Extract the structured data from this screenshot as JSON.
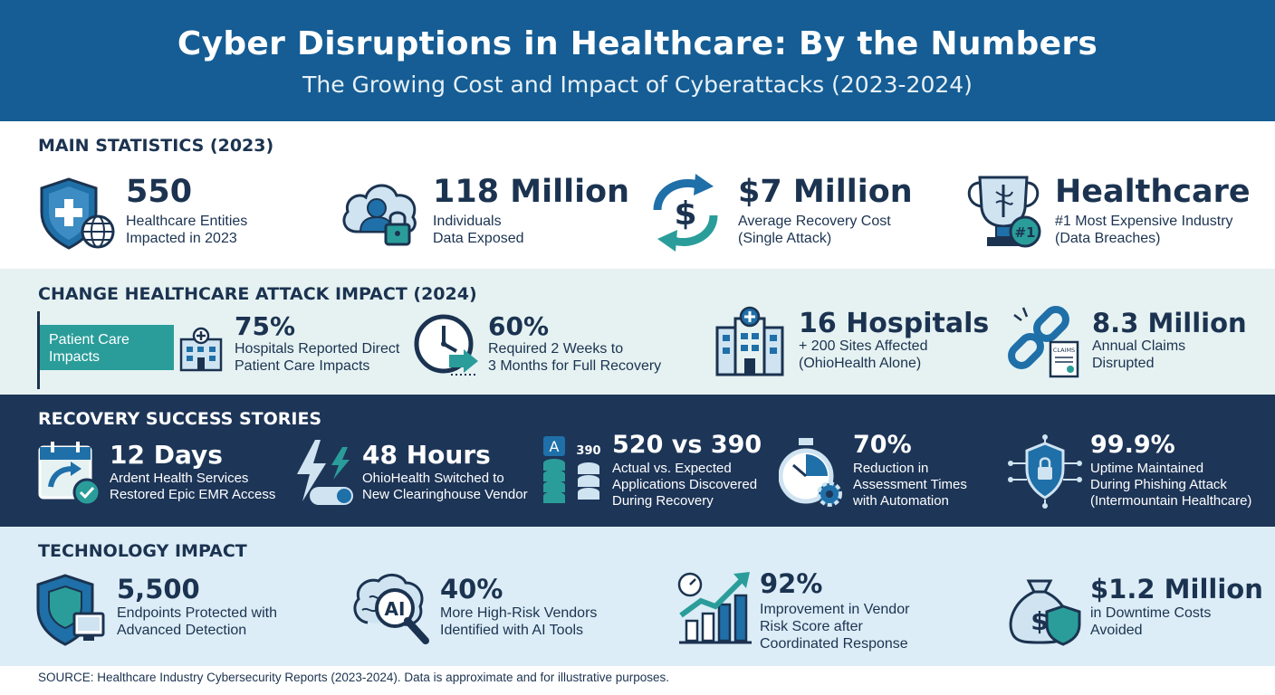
{
  "header": {
    "title": "Cyber Disruptions in Healthcare: By the Numbers",
    "subtitle": "The Growing Cost and Impact of Cyberattacks (2023-2024)"
  },
  "main_stats": {
    "title": "MAIN STATISTICS (2023)",
    "items": [
      {
        "value": "550",
        "line1": "Healthcare Entities",
        "line2": "Impacted in 2023",
        "icon": "shield-globe-icon"
      },
      {
        "value": "118 Million",
        "line1": "Individuals",
        "line2": "Data Exposed",
        "icon": "cloud-user-lock-icon"
      },
      {
        "value": "$7 Million",
        "line1": "Average Recovery Cost",
        "line2": "(Single Attack)",
        "icon": "dollar-cycle-icon"
      },
      {
        "value": "Healthcare",
        "line1": "#1 Most Expensive Industry",
        "line2": "(Data Breaches)",
        "icon": "trophy-icon",
        "badge": "#1"
      }
    ]
  },
  "change_attack": {
    "title": "CHANGE HEALTHCARE ATTACK IMPACT (2024)",
    "tag": "Patient Care Impacts",
    "items": [
      {
        "value": "75%",
        "line1": "Hospitals Reported Direct",
        "line2": "Patient Care Impacts",
        "icon": "hospital-icon"
      },
      {
        "value": "60%",
        "line1": "Required 2 Weeks to",
        "line2": "3 Months for Full Recovery",
        "icon": "clock-arrow-icon"
      },
      {
        "value": "16 Hospitals",
        "line1": "+ 200 Sites Affected",
        "line2": "(OhioHealth Alone)",
        "icon": "hospital-building-icon"
      },
      {
        "value": "8.3 Million",
        "line1": "Annual Claims",
        "line2": "Disrupted",
        "icon": "broken-chain-icon",
        "doc_label": "CLAIMS"
      }
    ]
  },
  "recovery": {
    "title": "RECOVERY SUCCESS STORIES",
    "items": [
      {
        "value": "12 Days",
        "line1": "Ardent Health Services",
        "line2": "Restored Epic EMR Access",
        "line3": "",
        "icon": "calendar-check-icon"
      },
      {
        "value": "48 Hours",
        "line1": "OhioHealth Switched to",
        "line2": "New Clearinghouse Vendor",
        "line3": "",
        "icon": "lightning-toggle-icon"
      },
      {
        "value": "520 vs 390",
        "line1": "Actual vs. Expected",
        "line2": "Applications Discovered",
        "line3": "During Recovery",
        "icon": "app-stacks-icon",
        "stack_label": "390"
      },
      {
        "value": "70%",
        "line1": "Reduction in",
        "line2": "Assessment Times",
        "line3": "with Automation",
        "icon": "stopwatch-gear-icon"
      },
      {
        "value": "99.9%",
        "line1": "Uptime Maintained",
        "line2": "During Phishing Attack",
        "line3": "(Intermountain Healthcare)",
        "icon": "shield-network-icon"
      }
    ]
  },
  "technology": {
    "title": "TECHNOLOGY IMPACT",
    "items": [
      {
        "value": "5,500",
        "line1": "Endpoints Protected with",
        "line2": "Advanced Detection",
        "line3": "",
        "icon": "shield-monitor-icon"
      },
      {
        "value": "40%",
        "line1": "More High-Risk Vendors",
        "line2": "Identified with AI Tools",
        "line3": "",
        "icon": "ai-brain-icon",
        "ai_label": "AI"
      },
      {
        "value": "92%",
        "line1": "Improvement in Vendor",
        "line2": "Risk Score after",
        "line3": "Coordinated Response",
        "icon": "growth-chart-icon"
      },
      {
        "value": "$1.2 Million",
        "line1": "in Downtime Costs",
        "line2": "Avoided",
        "line3": "",
        "icon": "money-bag-shield-icon"
      }
    ]
  },
  "footer": "SOURCE: Healthcare Industry Cybersecurity Reports (2023-2024). Data is approximate and for illustrative purposes.",
  "colors": {
    "header": "#155d94",
    "navy": "#1b3350",
    "teal": "#2a9d9a",
    "band_light": "#e6f2f2",
    "band_dark": "#1d3557",
    "band_blue": "#dcedf7"
  }
}
